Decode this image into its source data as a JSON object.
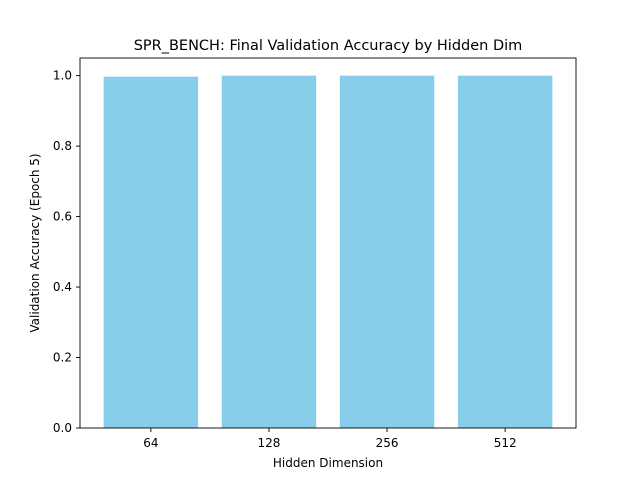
{
  "chart_data": {
    "type": "bar",
    "title": "SPR_BENCH: Final Validation Accuracy by Hidden Dim",
    "xlabel": "Hidden Dimension",
    "ylabel": "Validation Accuracy (Epoch 5)",
    "categories": [
      "64",
      "128",
      "256",
      "512"
    ],
    "values": [
      0.997,
      1.0,
      1.0,
      1.0
    ],
    "ylim": [
      0,
      1.05
    ],
    "yticks": [
      "0.0",
      "0.2",
      "0.4",
      "0.6",
      "0.8",
      "1.0"
    ],
    "grid": false,
    "legend": "none",
    "bar_color": "#87ceeb",
    "axis_color": "#000000"
  }
}
